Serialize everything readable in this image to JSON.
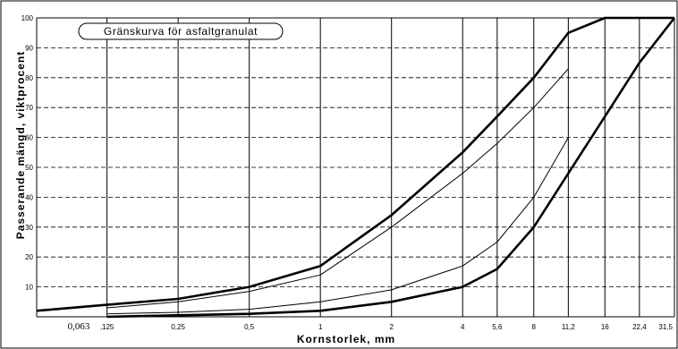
{
  "chart_data": {
    "type": "line",
    "title": "Gränskurva för asfaltgranulat",
    "xlabel": "Kornstorlek, mm",
    "ylabel": "Passerande mängd, viktprocent",
    "x_scale": "log",
    "x_ticks": [
      "0,063",
      ",125",
      "0,25",
      "0,5",
      "1",
      "2",
      "4",
      "5,6",
      "8",
      "11,2",
      "16",
      "22,4",
      "31,5"
    ],
    "x_values": [
      0.063,
      0.125,
      0.25,
      0.5,
      1,
      2,
      4,
      5.6,
      8,
      11.2,
      16,
      22.4,
      31.5
    ],
    "ylim": [
      0,
      100
    ],
    "y_ticks": [
      "10",
      "20",
      "30",
      "40",
      "50",
      "60",
      "70",
      "80",
      "90",
      "100"
    ],
    "grid": true,
    "series": [
      {
        "style": "bold",
        "x": [
          0.063,
          0.125,
          0.25,
          0.5,
          1,
          2,
          4,
          5.6,
          8,
          11.2,
          16,
          31.5
        ],
        "values": [
          2,
          4,
          6,
          10,
          17,
          34,
          55,
          67,
          80,
          95,
          100,
          100
        ]
      },
      {
        "style": "thin",
        "x": [
          0.125,
          0.25,
          0.5,
          1,
          2,
          4,
          5.6,
          8,
          11.2
        ],
        "values": [
          3,
          5,
          8.5,
          14,
          30,
          48,
          58,
          70,
          83
        ]
      },
      {
        "style": "thin",
        "x": [
          0.125,
          0.25,
          0.5,
          1,
          2,
          4,
          5.6,
          8,
          11.2
        ],
        "values": [
          1,
          1.5,
          2.5,
          5,
          9,
          17,
          25,
          40,
          60
        ]
      },
      {
        "style": "bold",
        "x": [
          0.125,
          0.25,
          0.5,
          1,
          2,
          4,
          5.6,
          8,
          11.2,
          16,
          22.4,
          31.5
        ],
        "values": [
          0,
          0.5,
          1,
          2,
          5,
          10,
          16,
          30,
          48,
          67,
          85,
          100
        ]
      }
    ]
  }
}
